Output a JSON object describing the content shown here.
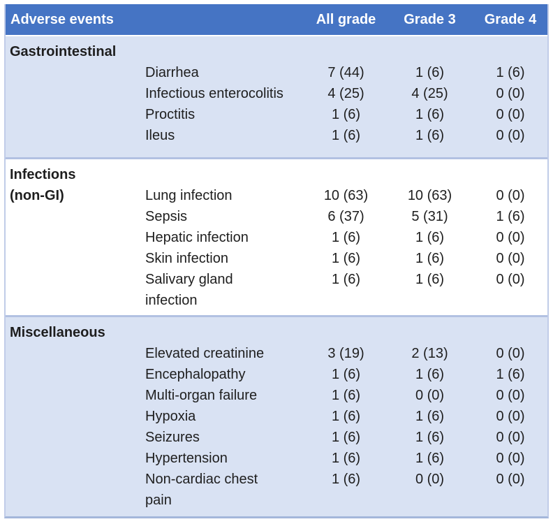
{
  "table": {
    "header": {
      "adverse_events": "Adverse events",
      "all_grade": "All grade",
      "grade_3": "Grade 3",
      "grade_4": "Grade 4"
    },
    "colors": {
      "header_bg": "#4574c4",
      "header_text": "#ffffff",
      "section_shaded_bg": "#d9e2f3",
      "section_plain_bg": "#ffffff",
      "divider": "#b2c1e2",
      "border_side": "#c0cce8",
      "border_bottom": "#a4b6da",
      "text": "#1e1e1e"
    },
    "sections": [
      {
        "name": "Gastrointestinal",
        "shaded": true,
        "rows": [
          {
            "label": "",
            "event": "Diarrhea",
            "all_grade": "7 (44)",
            "grade_3": "1 (6)",
            "grade_4": "1 (6)"
          },
          {
            "label": "",
            "event": "Infectious enterocolitis",
            "all_grade": "4 (25)",
            "grade_3": "4 (25)",
            "grade_4": "0 (0)"
          },
          {
            "label": "",
            "event": "Proctitis",
            "all_grade": "1 (6)",
            "grade_3": "1 (6)",
            "grade_4": "0 (0)"
          },
          {
            "label": "",
            "event": "Ileus",
            "all_grade": "1 (6)",
            "grade_3": "1 (6)",
            "grade_4": "0 (0)"
          }
        ]
      },
      {
        "name": "Infections",
        "shaded": false,
        "rows": [
          {
            "label": "(non-GI)",
            "event": "Lung infection",
            "all_grade": "10 (63)",
            "grade_3": "10 (63)",
            "grade_4": "0 (0)"
          },
          {
            "label": "",
            "event": "Sepsis",
            "all_grade": "6 (37)",
            "grade_3": "5 (31)",
            "grade_4": "1 (6)"
          },
          {
            "label": "",
            "event": "Hepatic infection",
            "all_grade": "1 (6)",
            "grade_3": "1 (6)",
            "grade_4": "0 (0)"
          },
          {
            "label": "",
            "event": "Skin infection",
            "all_grade": "1 (6)",
            "grade_3": "1 (6)",
            "grade_4": "0 (0)"
          },
          {
            "label": "",
            "event": "Salivary gland\ninfection",
            "all_grade": "1 (6)",
            "grade_3": "1 (6)",
            "grade_4": "0 (0)"
          }
        ]
      },
      {
        "name": "Miscellaneous",
        "shaded": true,
        "rows": [
          {
            "label": "",
            "event": "Elevated creatinine",
            "all_grade": "3 (19)",
            "grade_3": "2 (13)",
            "grade_4": "0 (0)"
          },
          {
            "label": "",
            "event": "Encephalopathy",
            "all_grade": "1 (6)",
            "grade_3": "1 (6)",
            "grade_4": "1 (6)"
          },
          {
            "label": "",
            "event": "Multi-organ failure",
            "all_grade": "1 (6)",
            "grade_3": "0 (0)",
            "grade_4": "0 (0)"
          },
          {
            "label": "",
            "event": "Hypoxia",
            "all_grade": "1 (6)",
            "grade_3": "1 (6)",
            "grade_4": "0 (0)"
          },
          {
            "label": "",
            "event": "Seizures",
            "all_grade": "1 (6)",
            "grade_3": "1 (6)",
            "grade_4": "0 (0)"
          },
          {
            "label": "",
            "event": "Hypertension",
            "all_grade": "1 (6)",
            "grade_3": "1 (6)",
            "grade_4": "0 (0)"
          },
          {
            "label": "",
            "event": "Non-cardiac chest\npain",
            "all_grade": "1 (6)",
            "grade_3": "0 (0)",
            "grade_4": "0 (0)"
          }
        ]
      }
    ]
  }
}
